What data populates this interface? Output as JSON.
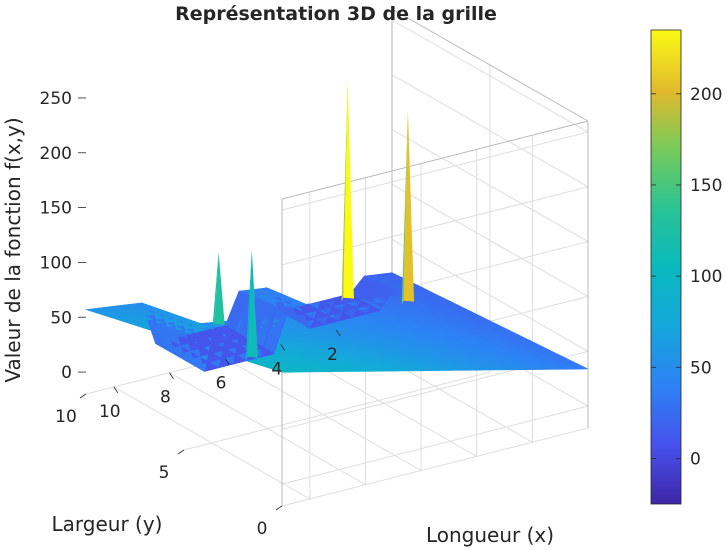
{
  "chart_data": {
    "type": "surface3d",
    "title": "Représentation 3D de la grille",
    "xlabel": "Longueur (x)",
    "ylabel": "Largeur (y)",
    "zlabel": "Valeur de la fonction f(x,y)",
    "x_ticks": [
      "2",
      "4",
      "6",
      "8",
      "10"
    ],
    "y_ticks": [
      "0",
      "5",
      "10"
    ],
    "z_ticks": [
      "0",
      "50",
      "100",
      "150",
      "200",
      "250"
    ],
    "xlim": [
      0,
      11
    ],
    "ylim": [
      0,
      10
    ],
    "zlim": [
      -20,
      260
    ],
    "colorbar": {
      "ticks": [
        "0",
        "50",
        "100",
        "150",
        "200"
      ],
      "range": [
        -25,
        235
      ],
      "colormap": "parula"
    },
    "peaks": [
      {
        "x": 3.0,
        "y": 8.0,
        "z": 235
      },
      {
        "x": 1.4,
        "y": 7.2,
        "z": 205
      },
      {
        "x": 8.7,
        "y": 6.5,
        "z": 130
      },
      {
        "x": 6.8,
        "y": 7.5,
        "z": 110
      }
    ],
    "grid": true
  }
}
